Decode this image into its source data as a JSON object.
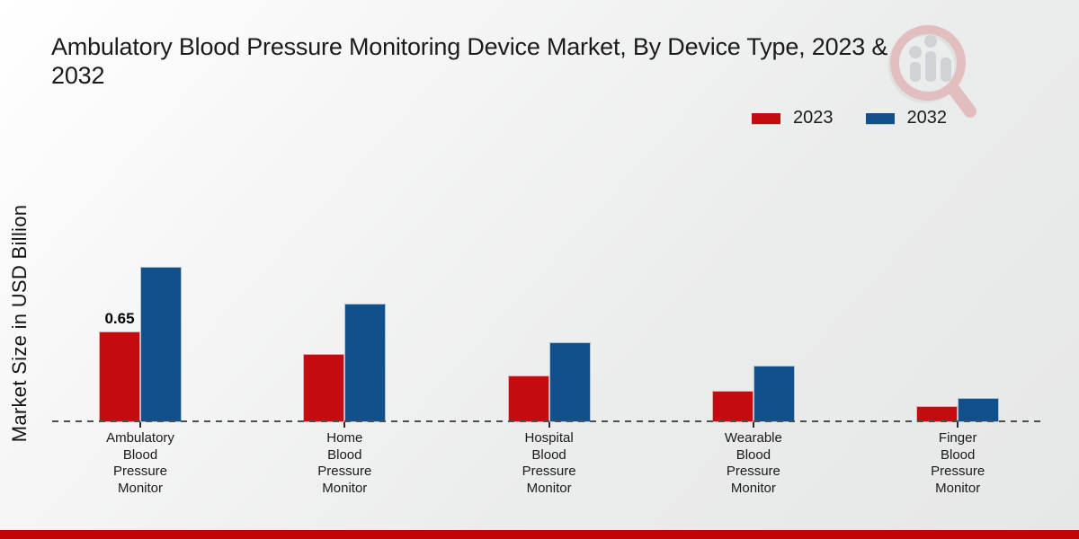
{
  "title": {
    "line1": "Ambulatory Blood Pressure Monitoring Device Market, By Device Type, 2023 &",
    "line2": "2032"
  },
  "y_axis_label": "Market Size in USD Billion",
  "legend": {
    "items": [
      {
        "label": "2023",
        "color": "#c40b10"
      },
      {
        "label": "2032",
        "color": "#12508c"
      }
    ]
  },
  "watermark_icon": "magnifier-bar-chart-logo-icon",
  "colors": {
    "series_2023": "#c40b10",
    "series_2032": "#12508c",
    "footer_strip": "#c00506",
    "baseline": "#4f4f4f",
    "text": "#1b1b1b"
  },
  "chart_data": {
    "type": "bar",
    "title": "Ambulatory Blood Pressure Monitoring Device Market, By Device Type, 2023 & 2032",
    "xlabel": "",
    "ylabel": "Market Size in USD Billion",
    "categories": [
      "Ambulatory Blood Pressure Monitor",
      "Home Blood Pressure Monitor",
      "Hospital Blood Pressure Monitor",
      "Wearable Blood Pressure Monitor",
      "Finger Blood Pressure Monitor"
    ],
    "category_display": [
      "Ambulatory\nBlood\nPressure\nMonitor",
      "Home\nBlood\nPressure\nMonitor",
      "Hospital\nBlood\nPressure\nMonitor",
      "Wearable\nBlood\nPressure\nMonitor",
      "Finger\nBlood\nPressure\nMonitor"
    ],
    "series": [
      {
        "name": "2023",
        "color": "#c40b10",
        "values": [
          0.65,
          0.49,
          0.33,
          0.22,
          0.11
        ],
        "value_labels": [
          "0.65",
          "",
          "",
          "",
          ""
        ]
      },
      {
        "name": "2032",
        "color": "#12508c",
        "values": [
          1.12,
          0.85,
          0.57,
          0.4,
          0.17
        ],
        "value_labels": [
          "",
          "",
          "",
          "",
          ""
        ]
      }
    ],
    "ylim": [
      0,
      1.3
    ],
    "grid": false,
    "legend_position": "top-right",
    "baseline_style": "dashed",
    "y_axis_ticks_visible": false
  }
}
